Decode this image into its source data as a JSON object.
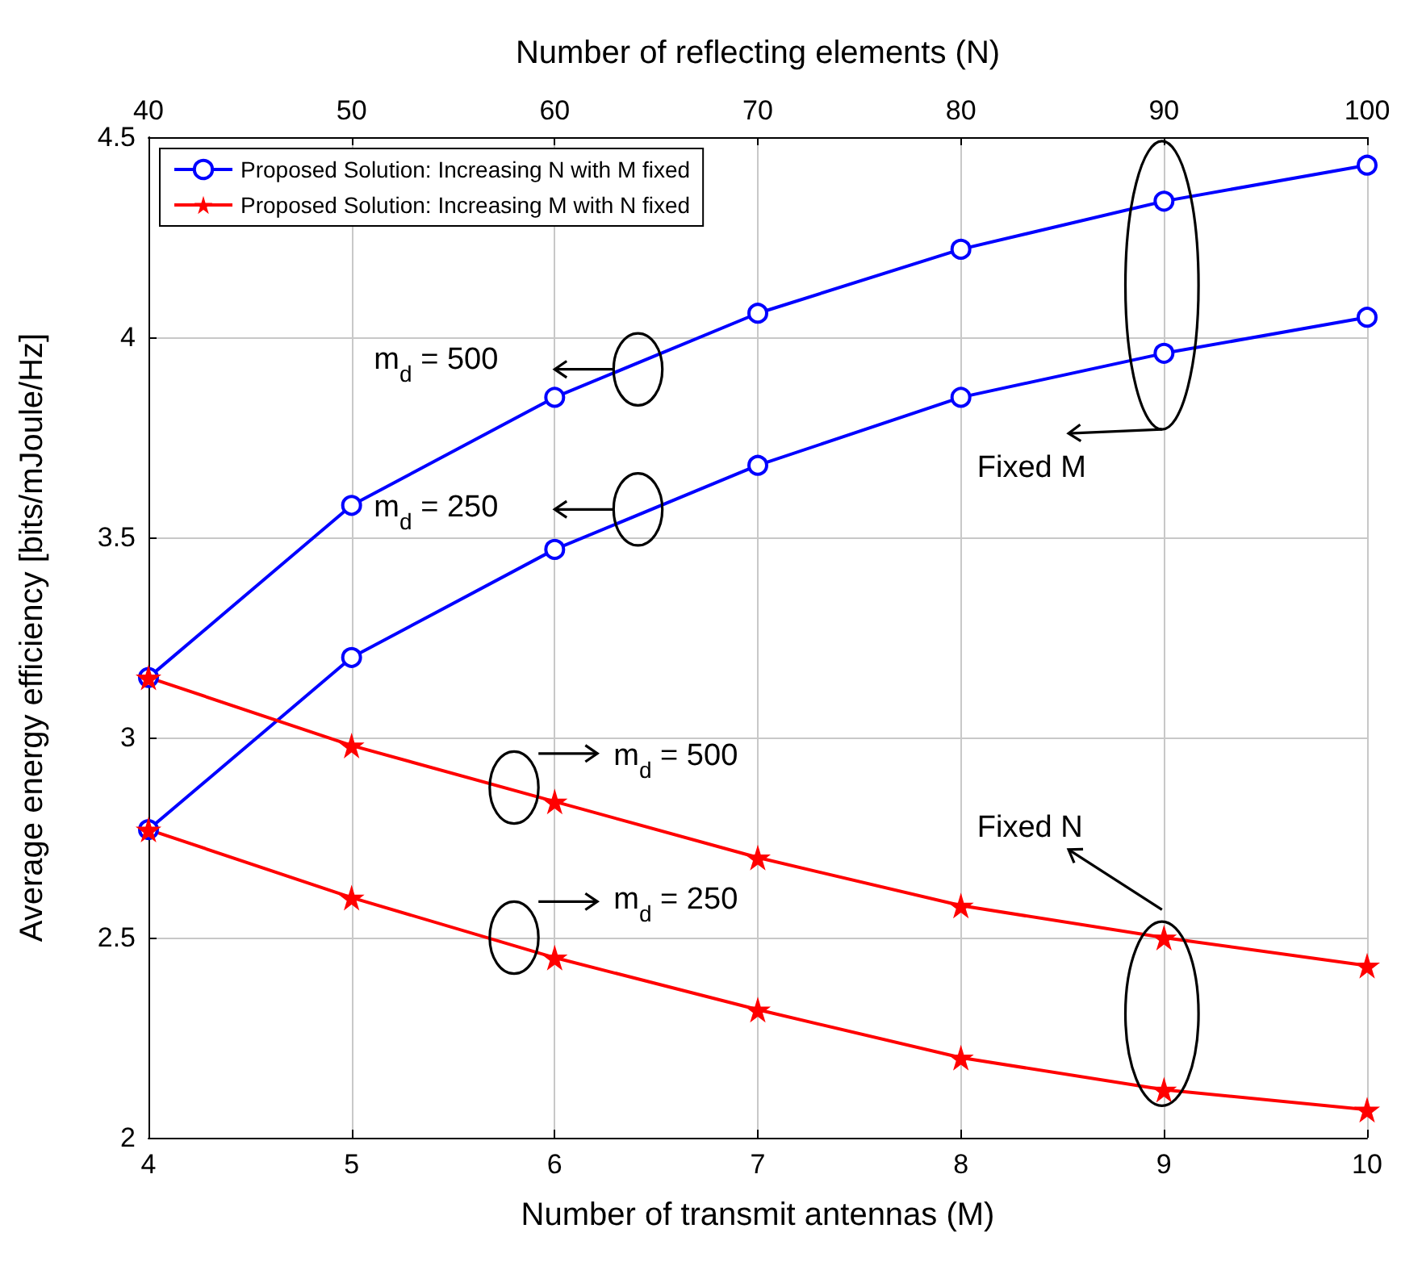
{
  "chart_data": {
    "type": "line",
    "xlabel": "Number of transmit antennas (M)",
    "x2label": "Number of reflecting elements (N)",
    "ylabel": "Average energy efficiency [bits/mJoule/Hz]",
    "xlim": [
      4,
      10
    ],
    "xticks": [
      4,
      5,
      6,
      7,
      8,
      9,
      10
    ],
    "x2lim": [
      40,
      100
    ],
    "x2ticks": [
      40,
      50,
      60,
      70,
      80,
      90,
      100
    ],
    "ylim": [
      2,
      4.5
    ],
    "yticks": [
      2,
      2.5,
      3,
      3.5,
      4,
      4.5
    ],
    "grid": true,
    "legend": "top left",
    "line_style": "solid",
    "series": [
      {
        "name": "Proposed Solution: Increasing N with M fixed",
        "color": "#0000ff",
        "marker": "circle",
        "axis": "x2",
        "x": [
          40,
          50,
          60,
          70,
          80,
          90,
          100
        ],
        "values": [
          3.15,
          3.58,
          3.85,
          4.06,
          4.22,
          4.34,
          4.43
        ]
      },
      {
        "color": "#0000ff",
        "marker": "circle",
        "axis": "x2",
        "x": [
          40,
          50,
          60,
          70,
          80,
          90,
          100
        ],
        "values": [
          2.77,
          3.2,
          3.47,
          3.68,
          3.85,
          3.96,
          4.05
        ]
      },
      {
        "name": "Proposed Solution: Increasing M with N fixed",
        "color": "#ff0000",
        "marker": "star",
        "x": [
          4,
          5,
          6,
          7,
          8,
          9,
          10
        ],
        "values": [
          3.15,
          2.98,
          2.84,
          2.7,
          2.58,
          2.5,
          2.43
        ]
      },
      {
        "color": "#ff0000",
        "marker": "star",
        "x": [
          4,
          5,
          6,
          7,
          8,
          9,
          10
        ],
        "values": [
          2.77,
          2.6,
          2.45,
          2.32,
          2.2,
          2.12,
          2.07
        ]
      }
    ],
    "annotations": [
      "m$_{d}$ = 500",
      "m$_{d}$ = 250",
      "m$_{d}$ = 500",
      "m$_{d}$ = 250",
      "Fixed M",
      "Fixed N"
    ]
  }
}
